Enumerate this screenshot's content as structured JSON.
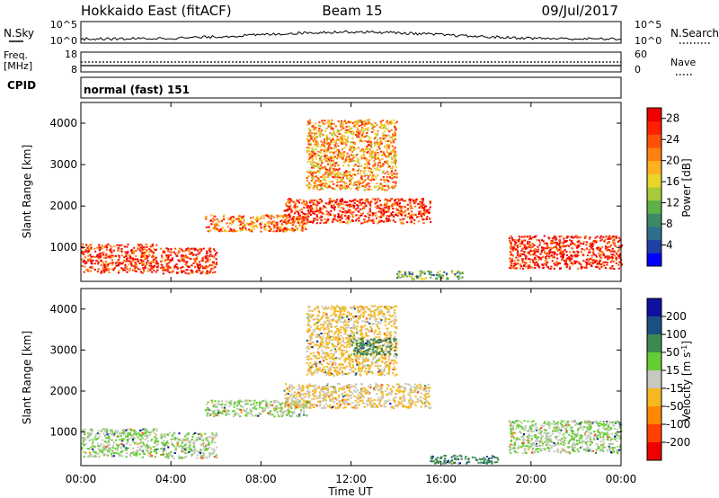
{
  "header": {
    "title": "Hokkaido East (fitACF)",
    "beam": "Beam 15",
    "date": "09/Jul/2017"
  },
  "top_panels": {
    "nsky_label": "N.Sky",
    "nsky_ticks": [
      "10^5",
      "10^0"
    ],
    "nsearch_label": "N.Search",
    "freq_label_1": "Freq.",
    "freq_label_2": "[MHz]",
    "freq_ticks": [
      "18",
      "8"
    ],
    "nave_ticks": [
      "60",
      "0"
    ],
    "nave_label": "Nave",
    "cpid_label": "CPID",
    "cpid_value": "normal (fast) 151"
  },
  "chart_data": [
    {
      "type": "heatmap",
      "name": "power",
      "ylabel": "Slant Range [km]",
      "xlabel": "",
      "x_ticks": [
        "00:00",
        "04:00",
        "08:00",
        "12:00",
        "16:00",
        "20:00",
        "00:00"
      ],
      "xlim_hours": [
        0,
        24
      ],
      "y_ticks": [
        1000,
        2000,
        3000,
        4000
      ],
      "ylim": [
        180,
        4500
      ],
      "colorbar": {
        "label": "Power [dB]",
        "ticks": [
          4,
          8,
          12,
          16,
          20,
          24,
          28
        ],
        "range": [
          0,
          30
        ],
        "colors": [
          "#0000ff",
          "#1f3fa6",
          "#2e6e8a",
          "#3a8a68",
          "#5fb04a",
          "#a7c93a",
          "#e8d52a",
          "#ffb020",
          "#ff8010",
          "#ff5005",
          "#ff2000",
          "#ee0000"
        ]
      },
      "regions": [
        {
          "t0": 0.0,
          "t1": 3.4,
          "r0": 400,
          "r1": 1100,
          "dB": 26
        },
        {
          "t0": 3.5,
          "t1": 6.0,
          "r0": 380,
          "r1": 1000,
          "dB": 27
        },
        {
          "t0": 5.5,
          "t1": 10.0,
          "r0": 1400,
          "r1": 1800,
          "dB": 22
        },
        {
          "t0": 9.0,
          "t1": 15.5,
          "r0": 1600,
          "r1": 2200,
          "dB": 26
        },
        {
          "t0": 10.0,
          "t1": 14.0,
          "r0": 2400,
          "r1": 4100,
          "dB": 20
        },
        {
          "t0": 19.0,
          "t1": 24.0,
          "r0": 500,
          "r1": 1300,
          "dB": 27
        },
        {
          "t0": 14.0,
          "t1": 17.0,
          "r0": 250,
          "r1": 450,
          "dB": 10
        }
      ]
    },
    {
      "type": "heatmap",
      "name": "velocity",
      "ylabel": "Slant Range [km]",
      "xlabel": "Time UT",
      "x_ticks": [
        "00:00",
        "04:00",
        "08:00",
        "12:00",
        "16:00",
        "20:00",
        "00:00"
      ],
      "xlim_hours": [
        0,
        24
      ],
      "y_ticks": [
        1000,
        2000,
        3000,
        4000
      ],
      "ylim": [
        180,
        4500
      ],
      "colorbar": {
        "label": "Velocity [m s-1]",
        "ticks": [
          200,
          100,
          50,
          15,
          -15,
          -50,
          -100,
          -200
        ],
        "colors": [
          "#1010a0",
          "#1a5080",
          "#3c8a50",
          "#66cc33",
          "#c8c8c0",
          "#f5b820",
          "#ff8800",
          "#ff4000",
          "#ee0000"
        ]
      },
      "regions": [
        {
          "t0": 0.0,
          "t1": 3.4,
          "r0": 400,
          "r1": 1100,
          "v": 0
        },
        {
          "t0": 3.5,
          "t1": 6.0,
          "r0": 380,
          "r1": 1000,
          "v": 0
        },
        {
          "t0": 5.5,
          "t1": 10.0,
          "r0": 1400,
          "r1": 1800,
          "v": 0
        },
        {
          "t0": 9.0,
          "t1": 15.5,
          "r0": 1600,
          "r1": 2200,
          "v": -30
        },
        {
          "t0": 10.0,
          "t1": 14.0,
          "r0": 2400,
          "r1": 4100,
          "v": -40
        },
        {
          "t0": 12.0,
          "t1": 14.0,
          "r0": 2900,
          "r1": 3300,
          "v": 60
        },
        {
          "t0": 19.0,
          "t1": 24.0,
          "r0": 500,
          "r1": 1300,
          "v": 0
        },
        {
          "t0": 15.5,
          "t1": 18.5,
          "r0": 250,
          "r1": 450,
          "v": 60
        }
      ]
    }
  ],
  "colors": {
    "ground_scatter": "#c8c8c0"
  }
}
